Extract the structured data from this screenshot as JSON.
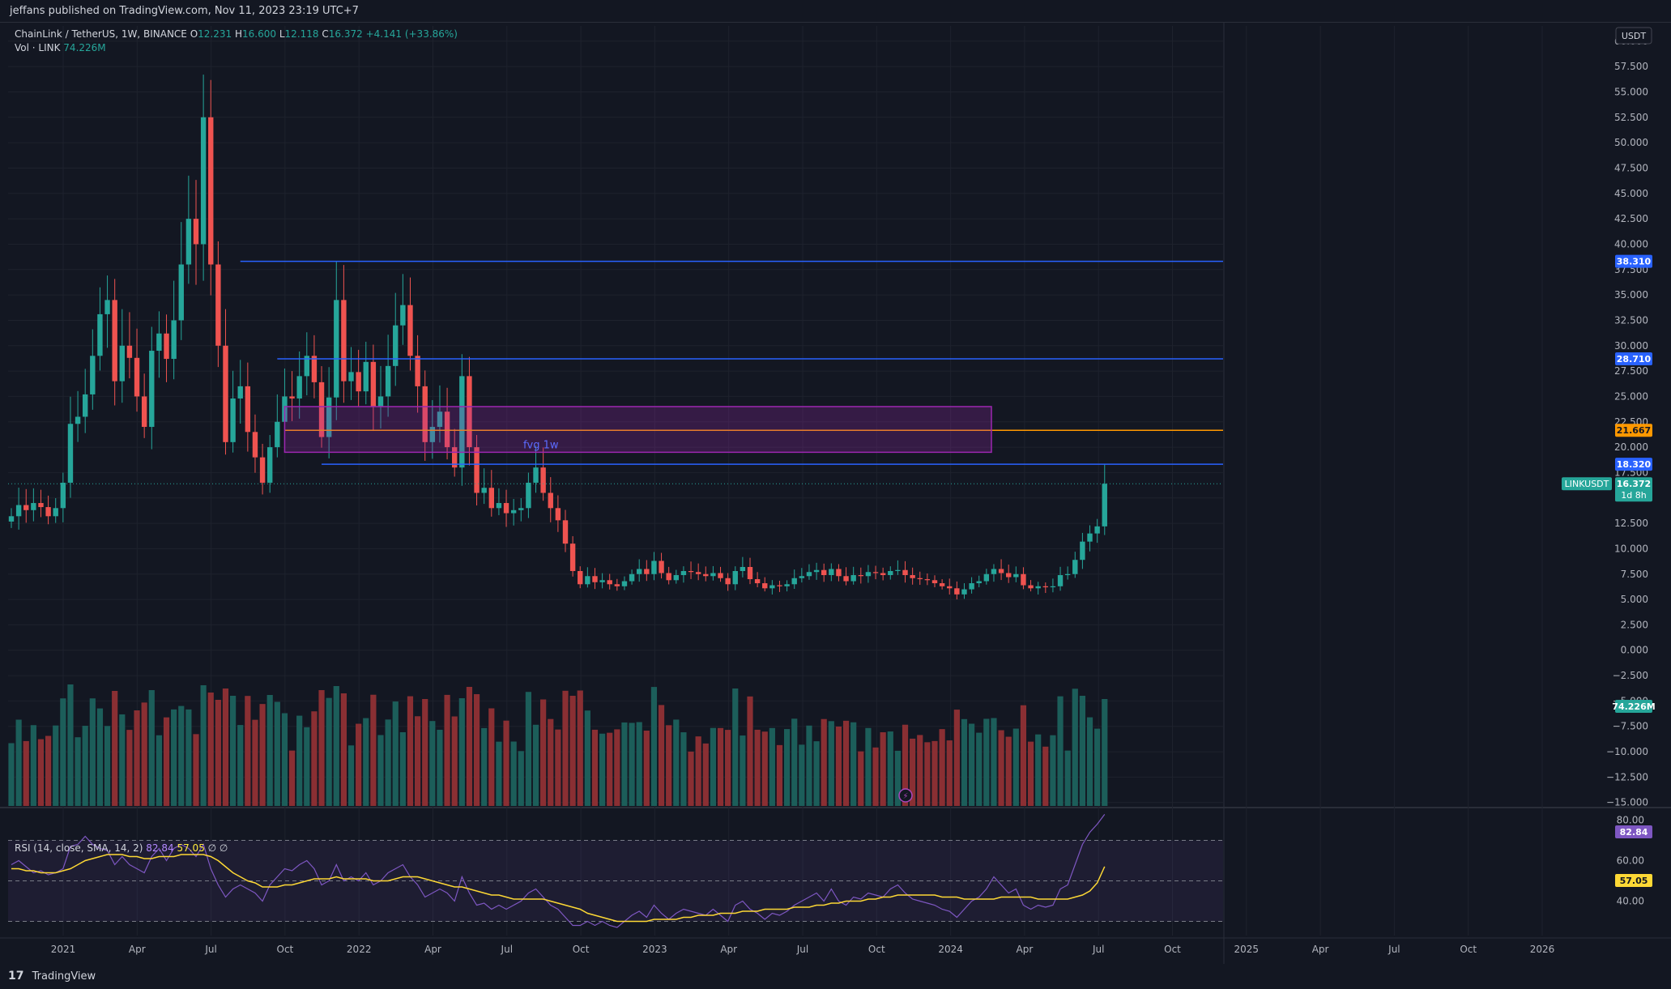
{
  "header": {
    "published": "jeffans published on TradingView.com, Nov 11, 2023 23:19 UTC+7"
  },
  "legend": {
    "symbol": "ChainLink / TetherUS, 1W, BINANCE",
    "open_label": "O",
    "open": "12.231",
    "high_label": "H",
    "high": "16.600",
    "low_label": "L",
    "low": "12.118",
    "close_label": "C",
    "close": "16.372",
    "change": "+4.141 (+33.86%)",
    "vol_label": "Vol · LINK",
    "vol_value": "74.226M"
  },
  "rsi_legend": {
    "label": "RSI (14, close, SMA, 14, 2)",
    "rsi": "82.84",
    "sma": "57.05",
    "extra": "∅ ∅"
  },
  "footer": {
    "brand": "TradingView",
    "logo": "17"
  },
  "colors": {
    "background": "#131722",
    "up": "#26a69a",
    "down": "#ef5350",
    "vol_up": "#1c5e5a",
    "vol_down": "#8a2f33",
    "level_blue": "#2962ff",
    "level_orange": "#ff9800",
    "fvg": "#9c27b0",
    "rsi": "#7e57c2",
    "rsi_sma": "#fdd835"
  },
  "chart_data": {
    "type": "candlestick",
    "currency": "USDT",
    "price_axis_ticks": [
      "60.000",
      "57.500",
      "55.000",
      "52.500",
      "50.000",
      "47.500",
      "45.000",
      "42.500",
      "40.000",
      "37.500",
      "35.000",
      "32.500",
      "30.000",
      "27.500",
      "25.000",
      "22.500",
      "20.000",
      "17.500",
      "15.000",
      "12.500",
      "10.000",
      "7.500",
      "5.000",
      "2.500",
      "0.000",
      "−2.500",
      "−5.000",
      "−7.500",
      "−10.000",
      "−12.500",
      "−15.000"
    ],
    "time_axis_labels": [
      "2021",
      "Apr",
      "Jul",
      "Oct",
      "2022",
      "Apr",
      "Jul",
      "Oct",
      "2023",
      "Apr",
      "Jul",
      "Oct",
      "2024",
      "Apr",
      "Jul",
      "Oct",
      "2025",
      "Apr",
      "Jul",
      "Oct",
      "2026"
    ],
    "levels": [
      {
        "price": 38.31,
        "label": "38.310",
        "color": "#2962ff"
      },
      {
        "price": 28.71,
        "label": "28.710",
        "color": "#2962ff"
      },
      {
        "price": 21.667,
        "label": "21.667",
        "color": "#ff9800"
      },
      {
        "price": 18.32,
        "label": "18.320",
        "color": "#2962ff"
      }
    ],
    "fvg_zone": {
      "label": "fvg 1w",
      "top": 24.0,
      "bottom": 19.5,
      "mid": 21.6
    },
    "current_price": {
      "symbol": "LINKUSDT",
      "label": "16.372",
      "countdown": "1d 8h"
    },
    "volume_label": "74.226M",
    "rsi_badges": {
      "rsi": "82.84",
      "sma": "57.05"
    },
    "rsi_axis_ticks": [
      "80.00",
      "60.00",
      "40.00"
    ],
    "rsi_levels": [
      70,
      50,
      30
    ],
    "rsi_range": [
      25,
      85
    ],
    "price_range": [
      -15.5,
      61.5
    ],
    "close": [
      13.2,
      14.3,
      13.8,
      14.5,
      14.1,
      13.2,
      14.0,
      16.5,
      22.3,
      23.0,
      25.2,
      29.0,
      33.1,
      34.5,
      26.5,
      30.0,
      28.8,
      25.0,
      22.0,
      29.5,
      31.2,
      28.7,
      32.5,
      38.0,
      42.5,
      40.0,
      52.5,
      38.0,
      30.0,
      20.5,
      24.8,
      26.0,
      21.5,
      19.0,
      16.5,
      20.0,
      22.5,
      25.0,
      24.8,
      27.0,
      29.0,
      26.4,
      21.0,
      24.9,
      34.5,
      26.5,
      27.4,
      25.5,
      28.4,
      24.0,
      25.0,
      28.0,
      32.0,
      34.0,
      29.0,
      26.0,
      20.5,
      22.0,
      23.5,
      20.0,
      18.0,
      27.0,
      20.0,
      15.5,
      16.0,
      14.0,
      14.5,
      13.5,
      13.8,
      14.0,
      16.5,
      18.0,
      15.5,
      14.0,
      12.8,
      10.5,
      7.8,
      6.5,
      7.3,
      6.7,
      6.9,
      6.5,
      6.3,
      6.8,
      7.5,
      8.0,
      7.5,
      8.8,
      7.6,
      6.9,
      7.4,
      7.8,
      7.7,
      7.5,
      7.3,
      7.6,
      7.1,
      6.5,
      7.8,
      8.2,
      7.0,
      6.6,
      6.1,
      6.4,
      6.3,
      6.5,
      7.1,
      7.3,
      7.7,
      7.9,
      7.4,
      8.0,
      7.3,
      6.8,
      7.4,
      7.3,
      7.7,
      7.6,
      7.4,
      7.8,
      7.9,
      7.4,
      7.1,
      7.0,
      6.9,
      6.6,
      6.3,
      6.1,
      5.5,
      6.0,
      6.6,
      6.8,
      7.5,
      8.0,
      7.6,
      7.2,
      7.5,
      6.4,
      6.1,
      6.3,
      6.2,
      6.3,
      7.4,
      7.5,
      8.9,
      10.7,
      11.5,
      12.2,
      16.4
    ],
    "rsi": [
      58,
      60,
      57,
      54,
      55,
      53,
      54,
      56,
      67,
      68,
      72,
      68,
      66,
      65,
      58,
      62,
      58,
      56,
      54,
      62,
      66,
      60,
      66,
      68,
      66,
      62,
      68,
      56,
      48,
      42,
      46,
      48,
      46,
      44,
      40,
      48,
      52,
      56,
      55,
      58,
      60,
      56,
      48,
      50,
      58,
      50,
      52,
      50,
      54,
      48,
      50,
      54,
      56,
      58,
      52,
      48,
      42,
      44,
      46,
      44,
      40,
      52,
      44,
      38,
      39,
      36,
      38,
      36,
      38,
      40,
      44,
      46,
      42,
      38,
      36,
      32,
      28,
      28,
      30,
      28,
      30,
      28,
      27,
      30,
      33,
      35,
      32,
      38,
      34,
      31,
      34,
      36,
      35,
      34,
      33,
      36,
      33,
      30,
      38,
      40,
      36,
      34,
      31,
      34,
      33,
      35,
      38,
      40,
      42,
      44,
      40,
      46,
      40,
      38,
      42,
      41,
      44,
      43,
      42,
      46,
      48,
      44,
      41,
      40,
      39,
      38,
      36,
      35,
      32,
      36,
      40,
      42,
      46,
      52,
      48,
      44,
      46,
      38,
      36,
      38,
      37,
      38,
      46,
      48,
      58,
      68,
      74,
      78,
      82.84
    ],
    "rsi_sma": [
      56,
      56,
      55,
      55,
      54,
      54,
      54,
      55,
      56,
      58,
      60,
      61,
      62,
      63,
      63,
      63,
      62,
      62,
      61,
      61,
      62,
      62,
      62,
      63,
      63,
      63,
      63,
      62,
      60,
      57,
      54,
      52,
      50,
      49,
      47,
      47,
      47,
      48,
      48,
      49,
      50,
      51,
      51,
      51,
      52,
      51,
      51,
      51,
      51,
      50,
      50,
      50,
      51,
      52,
      52,
      52,
      51,
      50,
      49,
      48,
      47,
      47,
      46,
      45,
      44,
      43,
      43,
      42,
      41,
      41,
      41,
      41,
      41,
      40,
      39,
      38,
      37,
      36,
      34,
      33,
      32,
      31,
      30,
      30,
      30,
      30,
      30,
      31,
      31,
      31,
      31,
      32,
      32,
      33,
      33,
      33,
      34,
      34,
      34,
      35,
      35,
      35,
      36,
      36,
      36,
      36,
      37,
      37,
      37,
      38,
      38,
      39,
      39,
      40,
      40,
      40,
      41,
      41,
      42,
      42,
      43,
      43,
      43,
      43,
      43,
      43,
      42,
      42,
      42,
      41,
      41,
      41,
      41,
      41,
      42,
      42,
      42,
      42,
      42,
      41,
      41,
      41,
      41,
      41,
      42,
      43,
      45,
      49,
      57.05
    ]
  }
}
